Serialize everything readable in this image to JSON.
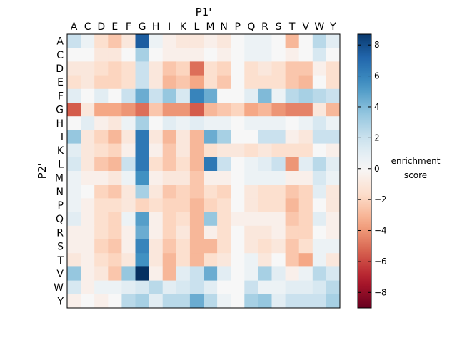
{
  "chart_data": {
    "type": "heatmap",
    "title": "",
    "xlabel": "P1'",
    "ylabel": "P2'",
    "x_categories": [
      "A",
      "C",
      "D",
      "E",
      "F",
      "G",
      "H",
      "I",
      "K",
      "L",
      "M",
      "N",
      "P",
      "Q",
      "R",
      "S",
      "T",
      "V",
      "W",
      "Y"
    ],
    "y_categories": [
      "A",
      "C",
      "D",
      "E",
      "F",
      "G",
      "H",
      "I",
      "K",
      "L",
      "M",
      "N",
      "P",
      "Q",
      "R",
      "S",
      "T",
      "V",
      "W",
      "Y"
    ],
    "values": [
      [
        2.0,
        0.5,
        -1.5,
        -2.5,
        -1.0,
        7.5,
        0.5,
        -0.5,
        -1.0,
        -1.0,
        -0.5,
        -1.0,
        0.0,
        0.5,
        0.5,
        0.0,
        -3.0,
        0.0,
        2.5,
        1.0
      ],
      [
        0.0,
        0.0,
        -1.0,
        -1.0,
        0.0,
        3.0,
        0.0,
        -0.5,
        -0.5,
        -0.5,
        0.0,
        -0.5,
        0.0,
        0.5,
        0.5,
        0.0,
        -0.5,
        0.0,
        1.5,
        0.0
      ],
      [
        -1.0,
        -1.0,
        -1.5,
        -2.0,
        -1.5,
        2.0,
        -1.0,
        -2.5,
        -2.0,
        -5.0,
        -1.5,
        -2.0,
        0.0,
        -1.5,
        -1.0,
        -1.5,
        -2.5,
        -2.5,
        -0.5,
        -1.5
      ],
      [
        -1.5,
        -1.0,
        -2.0,
        -2.0,
        -1.5,
        2.0,
        -1.0,
        -3.0,
        -2.5,
        -3.5,
        -1.5,
        -2.5,
        0.0,
        -1.5,
        -1.5,
        -1.5,
        -2.5,
        -3.0,
        0.0,
        -1.5
      ],
      [
        1.0,
        0.0,
        1.0,
        0.0,
        2.0,
        4.5,
        2.0,
        3.5,
        1.5,
        6.0,
        4.5,
        0.0,
        0.0,
        1.0,
        4.0,
        0.5,
        2.5,
        3.0,
        2.5,
        2.0
      ],
      [
        -5.5,
        -1.0,
        -3.5,
        -3.5,
        -4.0,
        -5.0,
        -2.5,
        -4.0,
        -4.0,
        -5.5,
        -3.0,
        -2.5,
        -2.0,
        -3.5,
        -3.0,
        -4.0,
        -4.5,
        -4.5,
        -1.0,
        -3.0
      ],
      [
        0.0,
        1.0,
        -0.5,
        -1.0,
        0.5,
        3.0,
        0.0,
        1.0,
        0.5,
        1.0,
        0.5,
        0.5,
        0.0,
        0.5,
        0.5,
        0.5,
        0.0,
        0.5,
        1.5,
        0.5
      ],
      [
        3.5,
        -1.0,
        -2.0,
        -3.0,
        -1.0,
        6.5,
        -1.0,
        -3.0,
        -1.0,
        -3.0,
        4.5,
        3.0,
        0.0,
        0.0,
        2.0,
        2.0,
        -0.5,
        -1.0,
        2.0,
        2.0
      ],
      [
        1.0,
        -1.0,
        -1.5,
        -2.0,
        -0.5,
        6.5,
        -0.5,
        -2.5,
        -1.0,
        -3.0,
        -1.5,
        -1.0,
        -1.0,
        -1.5,
        -1.0,
        -1.5,
        -1.5,
        -1.5,
        0.0,
        -0.5
      ],
      [
        1.5,
        -1.0,
        -2.5,
        -3.0,
        2.0,
        6.5,
        -1.5,
        -2.5,
        -1.5,
        -3.0,
        6.5,
        2.0,
        0.0,
        0.5,
        1.0,
        2.0,
        -4.0,
        1.0,
        2.5,
        1.0
      ],
      [
        0.5,
        -0.5,
        -0.5,
        -1.0,
        0.5,
        5.5,
        -0.5,
        -1.0,
        -1.0,
        -2.5,
        -0.5,
        -0.5,
        0.0,
        0.5,
        0.5,
        0.5,
        -0.5,
        -0.5,
        1.5,
        0.5
      ],
      [
        0.5,
        0.0,
        -2.0,
        -2.5,
        -1.0,
        3.0,
        -1.0,
        -2.5,
        -2.0,
        -2.5,
        -1.5,
        -2.0,
        0.0,
        -1.0,
        -1.5,
        -1.5,
        -2.5,
        -2.0,
        1.0,
        -1.0
      ],
      [
        0.5,
        -0.5,
        -1.5,
        -1.5,
        -1.0,
        -2.0,
        -1.5,
        -2.0,
        -2.0,
        -3.0,
        -2.0,
        -1.5,
        0.0,
        -1.0,
        -1.5,
        -1.5,
        -3.0,
        -2.0,
        0.0,
        -1.0
      ],
      [
        1.0,
        -0.5,
        -1.5,
        -2.0,
        0.5,
        5.0,
        -0.5,
        -2.0,
        -1.5,
        -3.0,
        3.5,
        -1.5,
        -0.5,
        -0.5,
        -0.5,
        -0.5,
        -2.5,
        -2.0,
        1.0,
        -0.5
      ],
      [
        -0.5,
        -0.5,
        -1.5,
        -2.0,
        -0.5,
        4.5,
        -0.5,
        -2.0,
        -1.0,
        -3.0,
        -0.5,
        -1.5,
        0.0,
        -1.0,
        -1.0,
        -0.5,
        -2.0,
        -2.0,
        0.0,
        -0.5
      ],
      [
        -0.5,
        -0.5,
        -2.0,
        -2.5,
        -0.5,
        6.0,
        -1.0,
        -2.5,
        -1.5,
        -3.0,
        -3.0,
        -1.5,
        0.0,
        -1.0,
        -1.5,
        -1.0,
        -2.5,
        -1.5,
        0.5,
        0.5
      ],
      [
        -1.0,
        -0.5,
        -1.5,
        -2.0,
        -1.0,
        5.5,
        -1.0,
        -3.0,
        -1.5,
        -3.0,
        -1.5,
        -1.0,
        0.0,
        0.5,
        -1.0,
        0.0,
        -2.5,
        -3.5,
        0.5,
        -1.0
      ],
      [
        3.5,
        -0.5,
        -1.0,
        -2.5,
        3.5,
        9.0,
        -0.5,
        -3.0,
        1.0,
        2.0,
        4.5,
        1.0,
        0.0,
        0.5,
        3.0,
        1.0,
        -0.5,
        0.5,
        2.5,
        1.5
      ],
      [
        1.5,
        -0.5,
        0.5,
        0.5,
        1.0,
        1.5,
        2.5,
        1.0,
        1.5,
        2.0,
        1.0,
        0.0,
        0.0,
        2.0,
        0.5,
        0.5,
        1.0,
        1.0,
        1.5,
        2.5
      ],
      [
        -0.5,
        0.0,
        -0.5,
        0.0,
        2.5,
        3.0,
        1.0,
        2.5,
        2.5,
        4.5,
        2.5,
        0.5,
        0.0,
        3.0,
        3.5,
        1.0,
        2.0,
        2.0,
        2.0,
        3.0
      ]
    ],
    "colorbar": {
      "label_lines": [
        "enrichment",
        "score"
      ],
      "ticks": [
        8,
        6,
        4,
        2,
        0,
        -2,
        -4,
        -6,
        -8
      ],
      "vmin": -9,
      "vmax": 8.7,
      "colormap": "RdBu"
    },
    "x_axis_position": "top",
    "grid": false
  }
}
